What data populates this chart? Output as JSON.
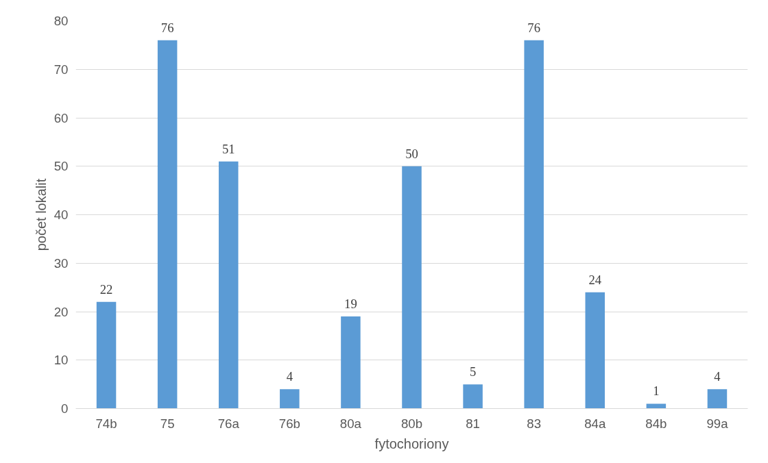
{
  "chart_data": {
    "type": "bar",
    "xlabel": "fytochoriony",
    "ylabel": "počet lokalit",
    "categories": [
      "74b",
      "75",
      "76a",
      "76b",
      "80a",
      "80b",
      "81",
      "83",
      "84a",
      "84b",
      "99a"
    ],
    "values": [
      22,
      76,
      51,
      4,
      19,
      50,
      5,
      76,
      24,
      1,
      4
    ],
    "color": "#5b9bd5",
    "ylim": [
      0,
      80
    ],
    "yticks": [
      0,
      10,
      20,
      30,
      40,
      50,
      60,
      70,
      80
    ],
    "grid": "y",
    "data_labels": true
  }
}
